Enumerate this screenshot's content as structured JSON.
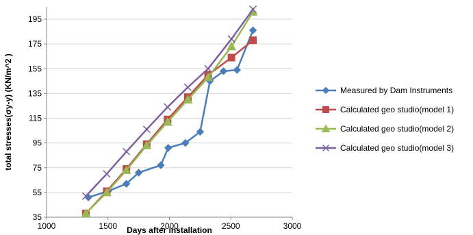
{
  "chart_data": {
    "type": "line",
    "title": "",
    "xlabel": "Days after installation",
    "ylabel": "total stresses(σy-y) (KN/m^2 )",
    "xlim": [
      1000,
      3000
    ],
    "ylim": [
      35,
      205
    ],
    "x_ticks": [
      1000,
      1500,
      2000,
      2500,
      3000
    ],
    "y_ticks": [
      35,
      55,
      75,
      95,
      115,
      135,
      155,
      175,
      195
    ],
    "grid": "horizontal",
    "legend_position": "right",
    "series": [
      {
        "name": "Measured by Dam Instruments",
        "color": "#4a7ebb",
        "marker": "diamond",
        "points": [
          [
            1340,
            51
          ],
          [
            1500,
            56
          ],
          [
            1650,
            62
          ],
          [
            1750,
            71
          ],
          [
            1930,
            77
          ],
          [
            1990,
            91
          ],
          [
            2130,
            95
          ],
          [
            2250,
            104
          ],
          [
            2330,
            145
          ],
          [
            2440,
            153
          ],
          [
            2550,
            154
          ],
          [
            2680,
            186
          ]
        ]
      },
      {
        "name": "Calculated geo studio(model 1)",
        "color": "#be4b48",
        "marker": "square",
        "points": [
          [
            1320,
            38
          ],
          [
            1490,
            56
          ],
          [
            1650,
            74
          ],
          [
            1815,
            94
          ],
          [
            1985,
            114
          ],
          [
            2150,
            132
          ],
          [
            2315,
            150
          ],
          [
            2505,
            164
          ],
          [
            2680,
            178
          ]
        ]
      },
      {
        "name": "Calculated geo studio(model 2)",
        "color": "#98b954",
        "marker": "triangle",
        "points": [
          [
            1320,
            38
          ],
          [
            1490,
            55
          ],
          [
            1650,
            73
          ],
          [
            1815,
            93
          ],
          [
            1985,
            112
          ],
          [
            2150,
            130
          ],
          [
            2315,
            148
          ],
          [
            2505,
            173
          ],
          [
            2680,
            201
          ]
        ]
      },
      {
        "name": "Calculated geo studio(model 3)",
        "color": "#7d60a0",
        "marker": "x",
        "points": [
          [
            1320,
            52
          ],
          [
            1490,
            70
          ],
          [
            1650,
            88
          ],
          [
            1815,
            106
          ],
          [
            1985,
            124
          ],
          [
            2150,
            140
          ],
          [
            2315,
            155
          ],
          [
            2505,
            179
          ],
          [
            2680,
            203
          ]
        ]
      }
    ]
  }
}
